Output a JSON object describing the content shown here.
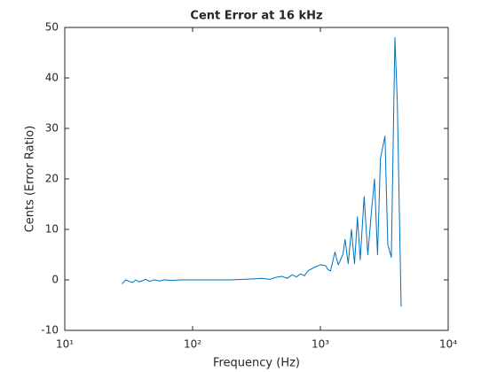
{
  "chart_data": {
    "type": "line",
    "title": "Cent Error at 16 kHz",
    "x_label": "Frequency (Hz)",
    "y_label": "Cents (Error Ratio)",
    "x_scale": "log",
    "x": [
      28,
      30,
      32,
      34,
      36,
      38,
      40,
      43,
      46,
      50,
      55,
      60,
      70,
      80,
      100,
      150,
      200,
      250,
      300,
      350,
      400,
      450,
      500,
      550,
      600,
      650,
      700,
      750,
      800,
      900,
      1000,
      1100,
      1150,
      1200,
      1300,
      1380,
      1500,
      1560,
      1650,
      1750,
      1850,
      1950,
      2050,
      2200,
      2350,
      2500,
      2650,
      2800,
      2950,
      3200,
      3370,
      3590,
      3830,
      4000,
      4285
    ],
    "series": [
      {
        "name": "Cent error",
        "color": "#0072bd",
        "values": [
          -0.8,
          0,
          -0.3,
          -0.5,
          0,
          -0.4,
          -0.2,
          0.1,
          -0.3,
          0,
          -0.2,
          0,
          -0.1,
          0,
          0,
          0,
          0,
          0.1,
          0.2,
          0.3,
          0.1,
          0.5,
          0.7,
          0.3,
          1.0,
          0.6,
          1.2,
          0.8,
          1.8,
          2.5,
          3.0,
          2.8,
          2.0,
          1.8,
          5.5,
          3.0,
          5.0,
          8.0,
          3.2,
          10.0,
          3.2,
          12.5,
          4.0,
          16.5,
          5.0,
          13.0,
          20.0,
          5.0,
          24.0,
          28.5,
          7.0,
          4.5,
          48.0,
          35.0,
          -5.3
        ]
      }
    ],
    "xlim": [
      10,
      10000
    ],
    "xticks": [
      {
        "value": 10,
        "label": "10¹"
      },
      {
        "value": 100,
        "label": "10²"
      },
      {
        "value": 1000,
        "label": "10³"
      },
      {
        "value": 10000,
        "label": "10⁴"
      }
    ],
    "ylim": [
      -10,
      50
    ],
    "yticks": [
      -10,
      0,
      10,
      20,
      30,
      40,
      50
    ],
    "grid": false
  }
}
